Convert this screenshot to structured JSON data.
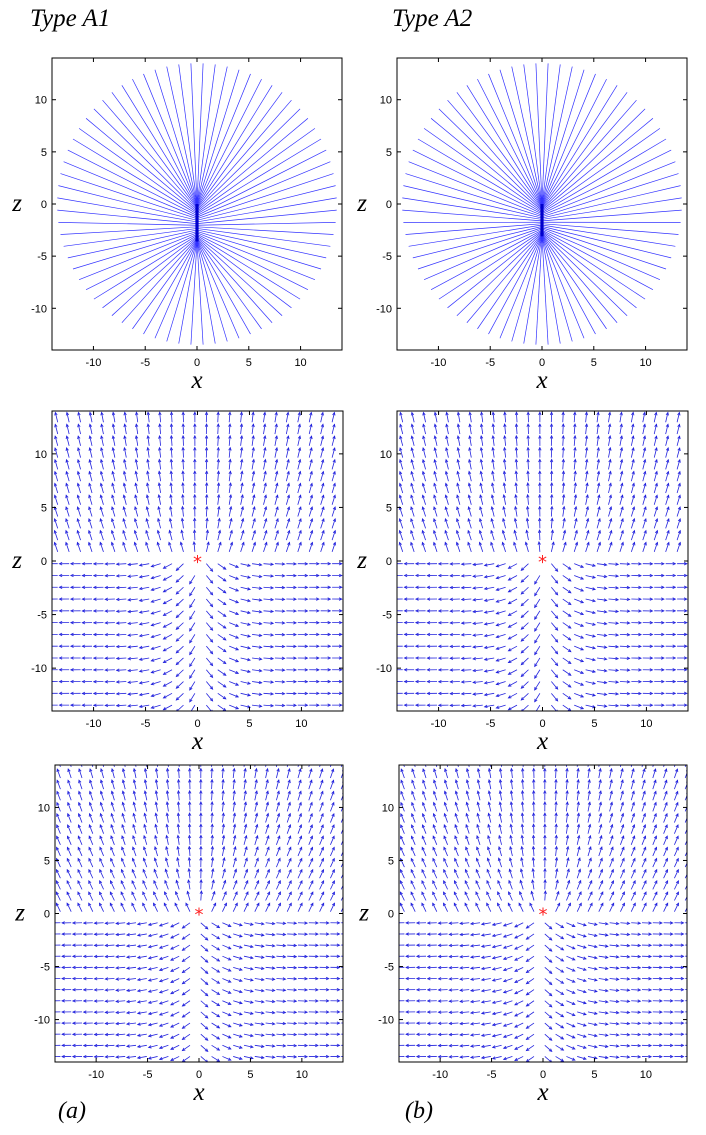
{
  "figure": {
    "column_titles": [
      "Type A1",
      "Type A2"
    ],
    "panel_tags": [
      "(a)",
      "(b)"
    ]
  },
  "chart_data": [
    {
      "type": "line",
      "plot": "rays",
      "row": 0,
      "col": 0,
      "xlabel": "x",
      "ylabel": "z",
      "xlim": [
        -14,
        14
      ],
      "ylim": [
        -14,
        14
      ],
      "xticks": [
        -10,
        -5,
        0,
        5,
        10
      ],
      "yticks": [
        -10,
        -5,
        0,
        5,
        10
      ],
      "ray_count": 72,
      "ray_radius": 13.5,
      "source_segment": {
        "x": 0,
        "z": [
          -3.6,
          0
        ]
      },
      "color": "#3333ff",
      "source_color": "#0000cc"
    },
    {
      "type": "line",
      "plot": "rays",
      "row": 0,
      "col": 1,
      "xlabel": "x",
      "ylabel": "z",
      "xlim": [
        -14,
        14
      ],
      "ylim": [
        -14,
        14
      ],
      "xticks": [
        -10,
        -5,
        0,
        5,
        10
      ],
      "yticks": [
        -10,
        -5,
        0,
        5,
        10
      ],
      "ray_count": 72,
      "ray_radius": 13.5,
      "source_segment": {
        "x": 0,
        "z": [
          -3.1,
          0
        ]
      },
      "color": "#3333ff",
      "source_color": "#0000cc"
    },
    {
      "type": "scatter",
      "plot": "quiver",
      "row": 1,
      "col": 0,
      "xlabel": "x",
      "ylabel": "z",
      "xlim": [
        -14,
        14
      ],
      "ylim": [
        -14,
        14
      ],
      "xticks": [
        -10,
        -5,
        0,
        5,
        10
      ],
      "yticks": [
        -10,
        -5,
        0,
        5,
        10
      ],
      "grid_spacing": 1.1,
      "source": {
        "x": 0,
        "z": 0,
        "marker": "*"
      },
      "color": "#2222dd",
      "marker_color": "#ff2222"
    },
    {
      "type": "scatter",
      "plot": "quiver",
      "row": 1,
      "col": 1,
      "xlabel": "x",
      "ylabel": "z",
      "xlim": [
        -14,
        14
      ],
      "ylim": [
        -14,
        14
      ],
      "xticks": [
        -10,
        -5,
        0,
        5,
        10
      ],
      "yticks": [
        -10,
        -5,
        0,
        5,
        10
      ],
      "grid_spacing": 1.1,
      "source": {
        "x": 0,
        "z": 0,
        "marker": "*"
      },
      "color": "#2222dd",
      "marker_color": "#ff2222"
    },
    {
      "type": "scatter",
      "plot": "quiver",
      "row": 2,
      "col": 0,
      "xlabel": "x",
      "ylabel": "z",
      "xlim": [
        -14,
        14
      ],
      "ylim": [
        -14,
        14
      ],
      "xticks": [
        -10,
        -5,
        0,
        5,
        10
      ],
      "yticks": [
        -10,
        -5,
        0,
        5,
        10
      ],
      "grid_spacing": 1.05,
      "source": {
        "x": 0,
        "z": 0,
        "marker": "*"
      },
      "color": "#2222dd",
      "marker_color": "#ff2222"
    },
    {
      "type": "scatter",
      "plot": "quiver",
      "row": 2,
      "col": 1,
      "xlabel": "x",
      "ylabel": "z",
      "xlim": [
        -14,
        14
      ],
      "ylim": [
        -14,
        14
      ],
      "xticks": [
        -10,
        -5,
        0,
        5,
        10
      ],
      "yticks": [
        -10,
        -5,
        0,
        5,
        10
      ],
      "grid_spacing": 1.05,
      "source": {
        "x": 0,
        "z": 0,
        "marker": "*"
      },
      "color": "#2222dd",
      "marker_color": "#ff2222"
    }
  ]
}
